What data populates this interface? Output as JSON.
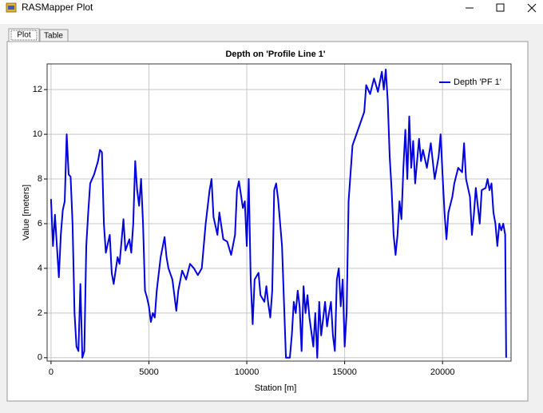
{
  "window": {
    "title": "RASMapper Plot",
    "tabs": [
      "Plot",
      "Table"
    ]
  },
  "chart_data": {
    "type": "line",
    "title": "Depth on 'Profile Line 1'",
    "x_label": "Station [m]",
    "y_label": "Value [meters]",
    "xlim": [
      -200,
      23500
    ],
    "ylim": [
      -0.15,
      13.15
    ],
    "xticks": [
      0,
      5000,
      10000,
      15000,
      20000
    ],
    "yticks": [
      0,
      2,
      4,
      6,
      8,
      10,
      12
    ],
    "grid": true,
    "legend": "upper right",
    "x": [
      0,
      100,
      200,
      300,
      400,
      500,
      600,
      700,
      800,
      900,
      1000,
      1100,
      1200,
      1300,
      1400,
      1500,
      1600,
      1700,
      1800,
      1900,
      2000,
      2200,
      2400,
      2500,
      2600,
      2700,
      2800,
      3000,
      3100,
      3200,
      3400,
      3500,
      3700,
      3800,
      4000,
      4100,
      4200,
      4300,
      4400,
      4500,
      4600,
      4700,
      4800,
      4900,
      5000,
      5100,
      5200,
      5300,
      5400,
      5600,
      5800,
      5900,
      6000,
      6200,
      6400,
      6500,
      6700,
      6900,
      7100,
      7300,
      7500,
      7700,
      7900,
      8100,
      8200,
      8300,
      8500,
      8600,
      8800,
      9000,
      9200,
      9400,
      9500,
      9600,
      9800,
      9900,
      10000,
      10100,
      10200,
      10300,
      10400,
      10600,
      10700,
      10900,
      11000,
      11100,
      11200,
      11300,
      11400,
      11500,
      11600,
      11800,
      11900,
      12000,
      12200,
      12300,
      12400,
      12500,
      12600,
      12700,
      12800,
      12900,
      13000,
      13100,
      13200,
      13400,
      13500,
      13600,
      13700,
      13800,
      14000,
      14100,
      14200,
      14300,
      14400,
      14500,
      14600,
      14700,
      14800,
      14900,
      15000,
      15100,
      15200,
      15400,
      15600,
      15800,
      16000,
      16100,
      16300,
      16500,
      16700,
      16900,
      17000,
      17100,
      17200,
      17300,
      17400,
      17500,
      17600,
      17700,
      17800,
      17900,
      18000,
      18100,
      18200,
      18300,
      18400,
      18500,
      18600,
      18800,
      18900,
      19000,
      19200,
      19400,
      19600,
      19800,
      19900,
      20000,
      20100,
      20200,
      20300,
      20500,
      20600,
      20800,
      21000,
      21100,
      21200,
      21400,
      21500,
      21600,
      21700,
      21900,
      22000,
      22200,
      22300,
      22400,
      22500,
      22600,
      22700,
      22800,
      22900,
      23000,
      23100,
      23200,
      23250
    ],
    "series": [
      {
        "name": "Depth 'PF 1'",
        "color": "#0000e0",
        "values": [
          7.1,
          5.0,
          6.4,
          5.0,
          3.6,
          5.5,
          6.6,
          7.0,
          10.0,
          8.2,
          8.1,
          6.0,
          2.0,
          0.5,
          0.3,
          3.3,
          0,
          0.3,
          5.0,
          6.5,
          7.8,
          8.2,
          8.8,
          9.3,
          9.2,
          6.0,
          4.7,
          5.5,
          3.8,
          3.3,
          4.5,
          4.2,
          6.2,
          4.8,
          5.3,
          4.7,
          6.0,
          8.8,
          7.5,
          6.8,
          8.0,
          6.0,
          3.0,
          2.7,
          2.3,
          1.6,
          2.0,
          1.8,
          3.0,
          4.5,
          5.4,
          4.5,
          4.0,
          3.5,
          2.1,
          3.0,
          3.9,
          3.5,
          4.2,
          4.0,
          3.7,
          4.0,
          6.0,
          7.5,
          8.0,
          6.3,
          5.5,
          6.5,
          5.3,
          5.2,
          4.6,
          5.5,
          7.5,
          7.9,
          6.7,
          7.0,
          5.0,
          8.0,
          3.5,
          1.5,
          3.5,
          3.8,
          2.8,
          2.5,
          3.2,
          2.4,
          1.8,
          3.0,
          7.5,
          7.8,
          7.1,
          5.0,
          2.5,
          0,
          0,
          1.0,
          2.5,
          2.0,
          3.0,
          2.3,
          0.3,
          3.2,
          2.0,
          2.8,
          1.8,
          0.5,
          2.0,
          0,
          2.5,
          1.0,
          2.5,
          1.4,
          2.0,
          2.5,
          1.0,
          0.3,
          3.5,
          4.0,
          2.3,
          3.5,
          0.5,
          2.0,
          7.0,
          9.5,
          10.0,
          10.5,
          11.0,
          12.2,
          11.8,
          12.5,
          11.9,
          12.8,
          12.0,
          12.9,
          11.5,
          9.0,
          7.5,
          5.5,
          4.6,
          5.5,
          7.0,
          6.2,
          8.5,
          10.2,
          8.0,
          10.8,
          8.5,
          9.7,
          7.8,
          9.8,
          8.8,
          9.3,
          8.5,
          9.6,
          8.0,
          9.0,
          10.0,
          8.2,
          6.5,
          5.3,
          6.5,
          7.2,
          7.8,
          8.5,
          8.3,
          9.6,
          8.0,
          7.2,
          5.5,
          6.4,
          7.6,
          6.0,
          7.5,
          7.6,
          8.0,
          7.5,
          7.8,
          6.5,
          6.0,
          5.0,
          6.0,
          5.7,
          6.0,
          5.5,
          0
        ]
      }
    ]
  }
}
